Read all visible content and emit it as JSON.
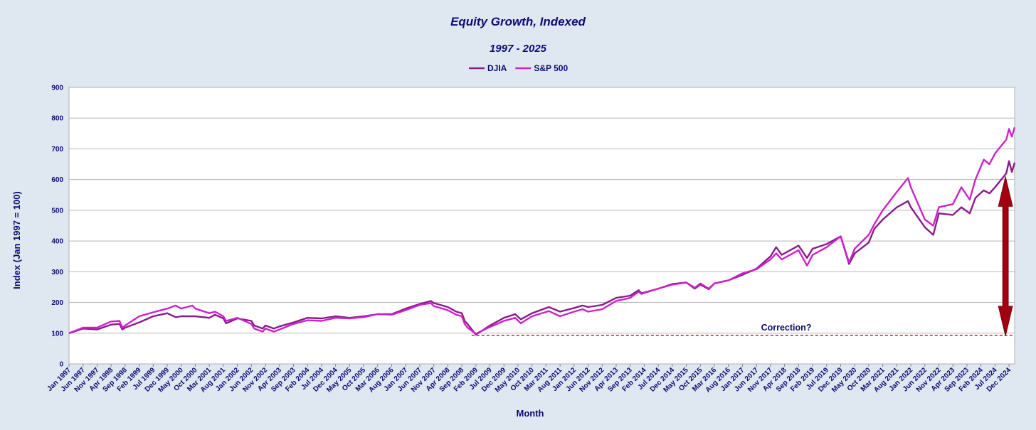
{
  "chart_data": {
    "type": "line",
    "title": "Equity Growth, Indexed",
    "subtitle": "1997 - 2025",
    "xlabel": "Month",
    "ylabel": "Index (Jan 1997 = 100)",
    "ylim": [
      0,
      900
    ],
    "yticks": [
      0,
      100,
      200,
      300,
      400,
      500,
      600,
      700,
      800,
      900
    ],
    "grid": true,
    "legend_position": "top-center",
    "x_tick_labels": [
      "Jan 1997",
      "Jun 1997",
      "Nov 1997",
      "Apr 1998",
      "Sep 1998",
      "Feb 1999",
      "Jul 1999",
      "Dec 1999",
      "May 2000",
      "Oct 2000",
      "Mar 2001",
      "Aug 2001",
      "Jan 2002",
      "Jun 2002",
      "Nov 2002",
      "Apr 2003",
      "Sep 2003",
      "Feb 2004",
      "Jul 2004",
      "Dec 2004",
      "May 2005",
      "Oct 2005",
      "Mar 2006",
      "Aug 2006",
      "Jan 2007",
      "Jun 2007",
      "Nov 2007",
      "Apr 2008",
      "Sep 2008",
      "Feb 2009",
      "Jul 2009",
      "Dec 2009",
      "May 2010",
      "Oct 2010",
      "Mar 2011",
      "Aug 2011",
      "Jan 2012",
      "Jun 2012",
      "Nov 2012",
      "Apr 2013",
      "Sep 2013",
      "Feb 2014",
      "Jul 2014",
      "Dec 2014",
      "May 2015",
      "Oct 2015",
      "Mar 2016",
      "Aug 2016",
      "Jan 2017",
      "Jun 2017",
      "Nov 2017",
      "Apr 2018",
      "Sep 2018",
      "Feb 2019",
      "Jul 2019",
      "Dec 2019",
      "May 2020",
      "Oct 2020",
      "Mar 2021",
      "Aug 2021",
      "Jan 2022",
      "Jun 2022",
      "Nov 2022",
      "Apr 2023",
      "Sep 2023",
      "Feb 2024",
      "Jul 2024",
      "Dec 2024"
    ],
    "series": [
      {
        "name": "DJIA",
        "color": "#8b1a8b",
        "points": [
          [
            "Jan 1997",
            100
          ],
          [
            "Jun 1997",
            115
          ],
          [
            "Nov 1997",
            112
          ],
          [
            "Apr 1998",
            128
          ],
          [
            "Jul 1998",
            130
          ],
          [
            "Aug 1998",
            112
          ],
          [
            "Sep 1998",
            118
          ],
          [
            "Feb 1999",
            135
          ],
          [
            "Jul 1999",
            155
          ],
          [
            "Dec 1999",
            165
          ],
          [
            "Mar 2000",
            152
          ],
          [
            "May 2000",
            155
          ],
          [
            "Oct 2000",
            155
          ],
          [
            "Mar 2001",
            150
          ],
          [
            "May 2001",
            160
          ],
          [
            "Aug 2001",
            148
          ],
          [
            "Sep 2001",
            132
          ],
          [
            "Jan 2002",
            148
          ],
          [
            "Jun 2002",
            140
          ],
          [
            "Jul 2002",
            125
          ],
          [
            "Oct 2002",
            115
          ],
          [
            "Nov 2002",
            125
          ],
          [
            "Feb 2003",
            115
          ],
          [
            "Apr 2003",
            122
          ],
          [
            "Sep 2003",
            135
          ],
          [
            "Feb 2004",
            150
          ],
          [
            "Jul 2004",
            148
          ],
          [
            "Dec 2004",
            155
          ],
          [
            "May 2005",
            150
          ],
          [
            "Oct 2005",
            155
          ],
          [
            "Mar 2006",
            162
          ],
          [
            "Aug 2006",
            162
          ],
          [
            "Jan 2007",
            180
          ],
          [
            "Jun 2007",
            195
          ],
          [
            "Oct 2007",
            205
          ],
          [
            "Nov 2007",
            198
          ],
          [
            "Apr 2008",
            185
          ],
          [
            "Jul 2008",
            170
          ],
          [
            "Sep 2008",
            165
          ],
          [
            "Oct 2008",
            140
          ],
          [
            "Nov 2008",
            130
          ],
          [
            "Feb 2009",
            95
          ],
          [
            "Jul 2009",
            125
          ],
          [
            "Dec 2009",
            150
          ],
          [
            "Apr 2010",
            162
          ],
          [
            "Jun 2010",
            145
          ],
          [
            "Oct 2010",
            165
          ],
          [
            "Apr 2011",
            185
          ],
          [
            "Aug 2011",
            170
          ],
          [
            "Jan 2012",
            182
          ],
          [
            "Apr 2012",
            190
          ],
          [
            "Jun 2012",
            185
          ],
          [
            "Nov 2012",
            192
          ],
          [
            "Apr 2013",
            215
          ],
          [
            "Sep 2013",
            222
          ],
          [
            "Dec 2013",
            240
          ],
          [
            "Jan 2014",
            230
          ],
          [
            "Jul 2014",
            245
          ],
          [
            "Dec 2014,",
            260
          ],
          [
            "May 2015",
            265
          ],
          [
            "Aug 2015",
            245
          ],
          [
            "Oct 2015",
            258
          ],
          [
            "Jan 2016",
            243
          ],
          [
            "Mar 2016",
            262
          ],
          [
            "Aug 2016",
            272
          ],
          [
            "Jan 2017",
            290
          ],
          [
            "Jun 2017",
            310
          ],
          [
            "Nov 2017",
            350
          ],
          [
            "Jan 2018",
            380
          ],
          [
            "Mar 2018",
            355
          ],
          [
            "Sep 2018",
            385
          ],
          [
            "Dec 2018",
            345
          ],
          [
            "Feb 2019",
            375
          ],
          [
            "Jul 2019",
            390
          ],
          [
            "Dec 2019",
            415
          ],
          [
            "Mar 2020",
            325
          ],
          [
            "May 2020",
            360
          ],
          [
            "Oct 2020",
            395
          ],
          [
            "Dec 2020",
            440
          ],
          [
            "Mar 2021",
            470
          ],
          [
            "Aug 2021",
            510
          ],
          [
            "Dec 2021",
            530
          ],
          [
            "Jan 2022",
            510
          ],
          [
            "Jun 2022",
            445
          ],
          [
            "Sep 2022",
            420
          ],
          [
            "Nov 2022",
            490
          ],
          [
            "Apr 2023",
            485
          ],
          [
            "Jul 2023",
            510
          ],
          [
            "Oct 2023",
            490
          ],
          [
            "Dec 2023",
            540
          ],
          [
            "Mar 2024",
            565
          ],
          [
            "May 2024",
            555
          ],
          [
            "Jul 2024",
            575
          ],
          [
            "Nov 2024",
            620
          ],
          [
            "Dec 2024",
            660
          ],
          [
            "Jan 2025",
            625
          ],
          [
            "Feb 2025",
            655
          ]
        ]
      },
      {
        "name": "S&P 500",
        "color": "#cc22cc",
        "points": [
          [
            "Jan 1997",
            100
          ],
          [
            "Jun 1997",
            118
          ],
          [
            "Nov 1997",
            118
          ],
          [
            "Apr 1998",
            138
          ],
          [
            "Jul 1998",
            140
          ],
          [
            "Aug 1998",
            118
          ],
          [
            "Sep 1998",
            125
          ],
          [
            "Feb 1999",
            155
          ],
          [
            "Jul 1999",
            168
          ],
          [
            "Dec 1999",
            180
          ],
          [
            "Mar 2000",
            190
          ],
          [
            "May 2000",
            180
          ],
          [
            "Sep 2000",
            190
          ],
          [
            "Oct 2000",
            180
          ],
          [
            "Mar 2001",
            165
          ],
          [
            "May 2001",
            170
          ],
          [
            "Aug 2001",
            155
          ],
          [
            "Sep 2001",
            140
          ],
          [
            "Jan 2002",
            150
          ],
          [
            "Jun 2002",
            130
          ],
          [
            "Jul 2002",
            115
          ],
          [
            "Oct 2002",
            105
          ],
          [
            "Nov 2002",
            115
          ],
          [
            "Feb 2003",
            105
          ],
          [
            "Apr 2003",
            112
          ],
          [
            "Sep 2003",
            130
          ],
          [
            "Feb 2004",
            142
          ],
          [
            "Jul 2004",
            140
          ],
          [
            "Dec 2004",
            150
          ],
          [
            "May 2005",
            148
          ],
          [
            "Oct 2005",
            152
          ],
          [
            "Mar 2006",
            162
          ],
          [
            "Aug 2006",
            160
          ],
          [
            "Jan 2007",
            175
          ],
          [
            "Jun 2007",
            192
          ],
          [
            "Oct 2007",
            198
          ],
          [
            "Nov 2007",
            188
          ],
          [
            "Apr 2008",
            175
          ],
          [
            "Jul 2008",
            160
          ],
          [
            "Sep 2008",
            155
          ],
          [
            "Oct 2008",
            130
          ],
          [
            "Nov 2008",
            118
          ],
          [
            "Feb 2009",
            98
          ],
          [
            "Jul 2009",
            120
          ],
          [
            "Dec 2009",
            140
          ],
          [
            "Apr 2010",
            150
          ],
          [
            "Jun 2010",
            132
          ],
          [
            "Oct 2010",
            155
          ],
          [
            "Apr 2011",
            172
          ],
          [
            "Aug 2011",
            155
          ],
          [
            "Jan 2012",
            170
          ],
          [
            "Apr 2012",
            178
          ],
          [
            "Jun 2012",
            170
          ],
          [
            "Nov 2012",
            178
          ],
          [
            "Apr 2013",
            205
          ],
          [
            "Sep 2013",
            215
          ],
          [
            "Dec 2013",
            235
          ],
          [
            "Jan 2014",
            228
          ],
          [
            "Jul 2014",
            245
          ],
          [
            "Dec 2014",
            258
          ],
          [
            "May 2015",
            265
          ],
          [
            "Aug 2015",
            248
          ],
          [
            "Oct 2015",
            262
          ],
          [
            "Jan 2016",
            245
          ],
          [
            "Mar 2016",
            262
          ],
          [
            "Aug 2016",
            272
          ],
          [
            "Jan 2017",
            295
          ],
          [
            "Jun 2017",
            308
          ],
          [
            "Nov 2017",
            340
          ],
          [
            "Jan 2018",
            360
          ],
          [
            "Mar 2018",
            340
          ],
          [
            "Sep 2018",
            370
          ],
          [
            "Dec 2018",
            320
          ],
          [
            "Feb 2019",
            355
          ],
          [
            "Jul 2019",
            380
          ],
          [
            "Dec 2019",
            415
          ],
          [
            "Mar 2020",
            330
          ],
          [
            "May 2020",
            375
          ],
          [
            "Oct 2020",
            420
          ],
          [
            "Dec 2020",
            455
          ],
          [
            "Mar 2021",
            500
          ],
          [
            "Aug 2021",
            560
          ],
          [
            "Dec 2021",
            605
          ],
          [
            "Jan 2022",
            575
          ],
          [
            "Jun 2022",
            470
          ],
          [
            "Sep 2022",
            450
          ],
          [
            "Nov 2022",
            510
          ],
          [
            "Apr 2023",
            520
          ],
          [
            "Jul 2023",
            575
          ],
          [
            "Oct 2023",
            535
          ],
          [
            "Dec 2023",
            600
          ],
          [
            "Mar 2024",
            665
          ],
          [
            "May 2024",
            650
          ],
          [
            "Jul 2024",
            685
          ],
          [
            "Nov 2024",
            730
          ],
          [
            "Dec 2024",
            765
          ],
          [
            "Jan 2025",
            740
          ],
          [
            "Feb 2025",
            770
          ]
        ]
      }
    ],
    "annotations": [
      {
        "text": "Correction?",
        "type": "dashed-line",
        "y": 93,
        "x_start": "Feb 2009",
        "x_end": "Feb 2025",
        "color": "#b01010"
      },
      {
        "type": "double-arrow",
        "x": "Dec 2024",
        "y_from": 100,
        "y_to": 610,
        "color": "#a00010"
      }
    ]
  }
}
